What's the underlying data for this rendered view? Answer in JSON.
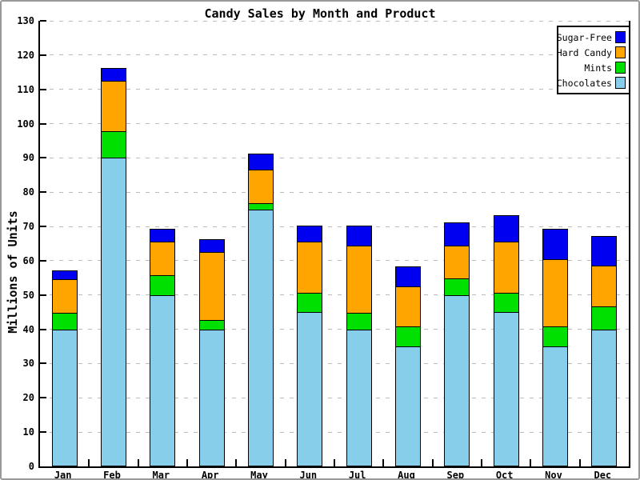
{
  "chart_data": {
    "type": "bar",
    "stacked": true,
    "title": "Candy Sales by Month and Product",
    "ylabel": "Millions of Units",
    "ylim": [
      0,
      130
    ],
    "ytick_step": 10,
    "grid": "horizontal-dashed",
    "legend_position": "top-right",
    "legend_order": [
      "Sugar-Free",
      "Hard Candy",
      "Mints",
      "Chocolates"
    ],
    "categories": [
      "Jan",
      "Feb",
      "Mar",
      "Apr",
      "May",
      "Jun",
      "Jul",
      "Aug",
      "Sep",
      "Oct",
      "Nov",
      "Dec"
    ],
    "series": [
      {
        "name": "Chocolates",
        "color": "#87CEEB",
        "values": [
          40,
          90,
          50,
          40,
          75,
          45,
          40,
          35,
          50,
          45,
          35,
          40
        ]
      },
      {
        "name": "Mints",
        "color": "#00E000",
        "values": [
          5,
          8,
          6,
          3,
          2,
          6,
          5,
          6,
          5,
          6,
          6,
          7
        ]
      },
      {
        "name": "Hard Candy",
        "color": "#FFA500",
        "values": [
          10,
          15,
          10,
          20,
          10,
          15,
          20,
          12,
          10,
          15,
          20,
          12
        ]
      },
      {
        "name": "Sugar-Free",
        "color": "#0000F0",
        "values": [
          3,
          4,
          4,
          4,
          5,
          5,
          6,
          6,
          7,
          8,
          9,
          9
        ]
      }
    ]
  },
  "colors": {
    "axis": "#000000",
    "gridline": "#BCBCBC",
    "frame_border": "#999999",
    "background": "#FFFFFF"
  }
}
